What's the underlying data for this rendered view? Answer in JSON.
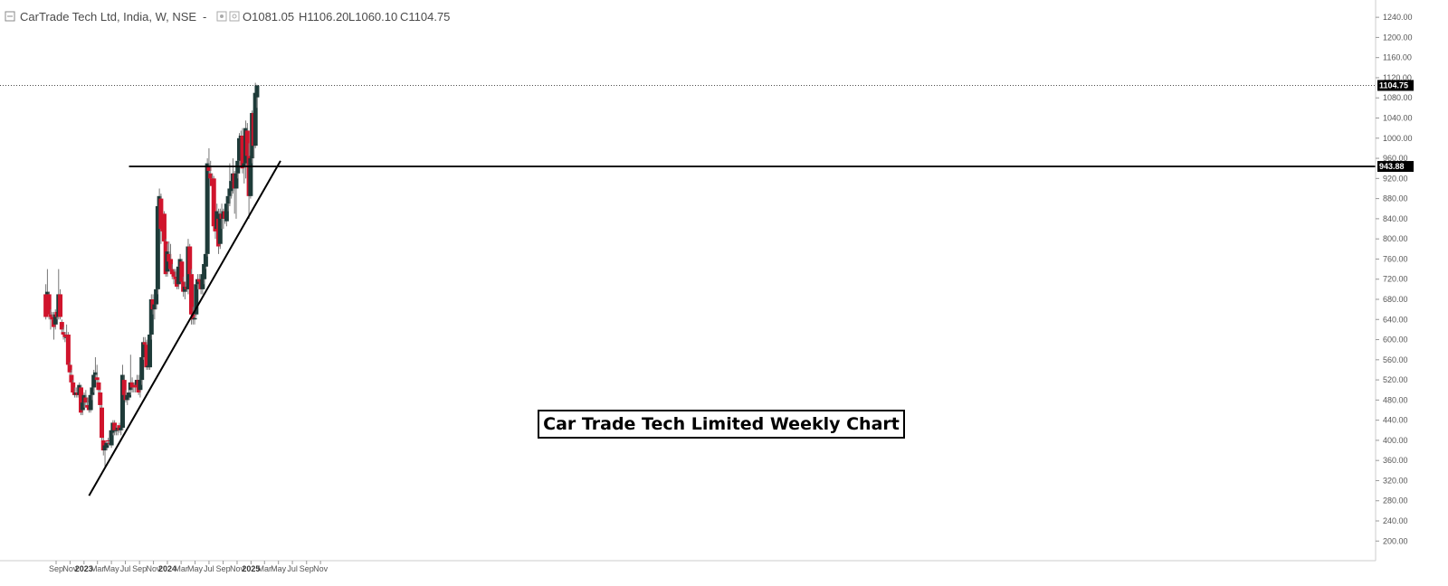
{
  "legend": {
    "symbol": "CarTrade Tech Ltd, India, W, NSE",
    "open": "O1081.05",
    "high": "H1106.20",
    "low": "L1060.10",
    "close": "C1104.75"
  },
  "chart_data": {
    "type": "candlestick",
    "title": "Car Trade Tech Limited Weekly Chart",
    "ylim": [
      170,
      1260
    ],
    "y_ticks": [
      200,
      240,
      280,
      320,
      360,
      400,
      440,
      480,
      520,
      560,
      600,
      640,
      680,
      720,
      760,
      800,
      840,
      880,
      920,
      960,
      1000,
      1040,
      1080,
      1120,
      1160,
      1200,
      1240
    ],
    "x_ticks": [
      {
        "label": "Sep",
        "date": "2022-09-01"
      },
      {
        "label": "Nov",
        "date": "2022-11-01"
      },
      {
        "label": "2023",
        "date": "2023-01-01",
        "bold": true
      },
      {
        "label": "Mar",
        "date": "2023-03-01"
      },
      {
        "label": "May",
        "date": "2023-05-01"
      },
      {
        "label": "Jul",
        "date": "2023-07-01"
      },
      {
        "label": "Sep",
        "date": "2023-09-01"
      },
      {
        "label": "Nov",
        "date": "2023-11-01"
      },
      {
        "label": "2024",
        "date": "2024-01-01",
        "bold": true
      },
      {
        "label": "Mar",
        "date": "2024-03-01"
      },
      {
        "label": "May",
        "date": "2024-05-01"
      },
      {
        "label": "Jul",
        "date": "2024-07-01"
      },
      {
        "label": "Sep",
        "date": "2024-09-01"
      },
      {
        "label": "Nov",
        "date": "2024-11-01"
      },
      {
        "label": "2025",
        "date": "2025-01-01",
        "bold": true
      },
      {
        "label": "Mar",
        "date": "2025-03-01"
      },
      {
        "label": "May",
        "date": "2025-05-01"
      },
      {
        "label": "Jul",
        "date": "2025-07-01"
      },
      {
        "label": "Sep",
        "date": "2025-09-01"
      },
      {
        "label": "Nov",
        "date": "2025-11-01"
      }
    ],
    "candles": [
      {
        "date": "2022-07-18",
        "o": 690,
        "h": 710,
        "l": 640,
        "c": 645
      },
      {
        "date": "2022-07-25",
        "o": 690,
        "h": 740,
        "l": 685,
        "c": 695
      },
      {
        "date": "2022-08-01",
        "o": 690,
        "h": 695,
        "l": 640,
        "c": 650
      },
      {
        "date": "2022-08-08",
        "o": 650,
        "h": 660,
        "l": 620,
        "c": 645
      },
      {
        "date": "2022-08-15",
        "o": 645,
        "h": 655,
        "l": 630,
        "c": 640
      },
      {
        "date": "2022-08-22",
        "o": 640,
        "h": 655,
        "l": 600,
        "c": 625
      },
      {
        "date": "2022-08-29",
        "o": 630,
        "h": 660,
        "l": 620,
        "c": 650
      },
      {
        "date": "2022-09-05",
        "o": 655,
        "h": 665,
        "l": 640,
        "c": 645
      },
      {
        "date": "2022-09-12",
        "o": 645,
        "h": 740,
        "l": 640,
        "c": 690
      },
      {
        "date": "2022-09-19",
        "o": 690,
        "h": 700,
        "l": 640,
        "c": 645
      },
      {
        "date": "2022-09-26",
        "o": 635,
        "h": 640,
        "l": 610,
        "c": 620
      },
      {
        "date": "2022-10-03",
        "o": 615,
        "h": 625,
        "l": 600,
        "c": 610
      },
      {
        "date": "2022-10-10",
        "o": 610,
        "h": 615,
        "l": 595,
        "c": 605
      },
      {
        "date": "2022-10-17",
        "o": 605,
        "h": 630,
        "l": 590,
        "c": 605
      },
      {
        "date": "2022-10-24",
        "o": 610,
        "h": 615,
        "l": 545,
        "c": 550
      },
      {
        "date": "2022-10-31",
        "o": 550,
        "h": 555,
        "l": 520,
        "c": 535
      },
      {
        "date": "2022-11-07",
        "o": 530,
        "h": 540,
        "l": 505,
        "c": 515
      },
      {
        "date": "2022-11-14",
        "o": 515,
        "h": 520,
        "l": 490,
        "c": 495
      },
      {
        "date": "2022-11-21",
        "o": 495,
        "h": 505,
        "l": 485,
        "c": 490
      },
      {
        "date": "2022-11-28",
        "o": 490,
        "h": 505,
        "l": 485,
        "c": 495
      },
      {
        "date": "2022-12-05",
        "o": 495,
        "h": 505,
        "l": 485,
        "c": 490
      },
      {
        "date": "2022-12-12",
        "o": 490,
        "h": 515,
        "l": 485,
        "c": 510
      },
      {
        "date": "2022-12-19",
        "o": 505,
        "h": 510,
        "l": 450,
        "c": 455
      },
      {
        "date": "2022-12-26",
        "o": 460,
        "h": 480,
        "l": 450,
        "c": 475
      },
      {
        "date": "2023-01-02",
        "o": 475,
        "h": 495,
        "l": 465,
        "c": 490
      },
      {
        "date": "2023-01-09",
        "o": 485,
        "h": 500,
        "l": 470,
        "c": 475
      },
      {
        "date": "2023-01-16",
        "o": 470,
        "h": 485,
        "l": 460,
        "c": 465
      },
      {
        "date": "2023-01-23",
        "o": 470,
        "h": 480,
        "l": 455,
        "c": 460
      },
      {
        "date": "2023-01-30",
        "o": 460,
        "h": 495,
        "l": 455,
        "c": 490
      },
      {
        "date": "2023-02-06",
        "o": 490,
        "h": 515,
        "l": 480,
        "c": 505
      },
      {
        "date": "2023-02-13",
        "o": 505,
        "h": 540,
        "l": 495,
        "c": 530
      },
      {
        "date": "2023-02-20",
        "o": 530,
        "h": 565,
        "l": 520,
        "c": 535
      },
      {
        "date": "2023-02-27",
        "o": 525,
        "h": 550,
        "l": 510,
        "c": 520
      },
      {
        "date": "2023-03-06",
        "o": 515,
        "h": 520,
        "l": 490,
        "c": 500
      },
      {
        "date": "2023-03-13",
        "o": 495,
        "h": 500,
        "l": 460,
        "c": 470
      },
      {
        "date": "2023-03-20",
        "o": 465,
        "h": 470,
        "l": 400,
        "c": 405
      },
      {
        "date": "2023-03-27",
        "o": 400,
        "h": 405,
        "l": 370,
        "c": 380
      },
      {
        "date": "2023-04-03",
        "o": 380,
        "h": 395,
        "l": 345,
        "c": 390
      },
      {
        "date": "2023-04-10",
        "o": 385,
        "h": 400,
        "l": 380,
        "c": 395
      },
      {
        "date": "2023-04-17",
        "o": 400,
        "h": 405,
        "l": 390,
        "c": 398
      },
      {
        "date": "2023-04-24",
        "o": 395,
        "h": 400,
        "l": 390,
        "c": 393
      },
      {
        "date": "2023-05-01",
        "o": 390,
        "h": 425,
        "l": 385,
        "c": 420
      },
      {
        "date": "2023-05-08",
        "o": 415,
        "h": 440,
        "l": 410,
        "c": 435
      },
      {
        "date": "2023-05-15",
        "o": 435,
        "h": 440,
        "l": 410,
        "c": 420
      },
      {
        "date": "2023-05-22",
        "o": 420,
        "h": 430,
        "l": 410,
        "c": 420
      },
      {
        "date": "2023-05-29",
        "o": 420,
        "h": 430,
        "l": 410,
        "c": 425
      },
      {
        "date": "2023-06-05",
        "o": 430,
        "h": 435,
        "l": 415,
        "c": 420
      },
      {
        "date": "2023-06-12",
        "o": 420,
        "h": 430,
        "l": 410,
        "c": 425
      },
      {
        "date": "2023-06-19",
        "o": 425,
        "h": 550,
        "l": 420,
        "c": 530
      },
      {
        "date": "2023-06-26",
        "o": 520,
        "h": 530,
        "l": 480,
        "c": 490
      },
      {
        "date": "2023-07-03",
        "o": 490,
        "h": 500,
        "l": 475,
        "c": 480
      },
      {
        "date": "2023-07-10",
        "o": 480,
        "h": 495,
        "l": 470,
        "c": 490
      },
      {
        "date": "2023-07-17",
        "o": 485,
        "h": 505,
        "l": 480,
        "c": 495
      },
      {
        "date": "2023-07-24",
        "o": 500,
        "h": 570,
        "l": 490,
        "c": 515
      },
      {
        "date": "2023-07-31",
        "o": 515,
        "h": 525,
        "l": 495,
        "c": 505
      },
      {
        "date": "2023-08-07",
        "o": 510,
        "h": 515,
        "l": 495,
        "c": 508
      },
      {
        "date": "2023-08-14",
        "o": 510,
        "h": 520,
        "l": 495,
        "c": 505
      },
      {
        "date": "2023-08-21",
        "o": 510,
        "h": 530,
        "l": 500,
        "c": 520
      },
      {
        "date": "2023-08-28",
        "o": 520,
        "h": 530,
        "l": 490,
        "c": 495
      },
      {
        "date": "2023-09-04",
        "o": 500,
        "h": 525,
        "l": 485,
        "c": 520
      },
      {
        "date": "2023-09-11",
        "o": 520,
        "h": 570,
        "l": 510,
        "c": 565
      },
      {
        "date": "2023-09-18",
        "o": 565,
        "h": 605,
        "l": 560,
        "c": 595
      },
      {
        "date": "2023-09-25",
        "o": 595,
        "h": 605,
        "l": 580,
        "c": 590
      },
      {
        "date": "2023-10-02",
        "o": 590,
        "h": 600,
        "l": 540,
        "c": 545
      },
      {
        "date": "2023-10-09",
        "o": 545,
        "h": 560,
        "l": 540,
        "c": 548
      },
      {
        "date": "2023-10-16",
        "o": 545,
        "h": 620,
        "l": 540,
        "c": 610
      },
      {
        "date": "2023-10-23",
        "o": 610,
        "h": 690,
        "l": 600,
        "c": 680
      },
      {
        "date": "2023-10-30",
        "o": 680,
        "h": 690,
        "l": 650,
        "c": 660
      },
      {
        "date": "2023-11-06",
        "o": 660,
        "h": 685,
        "l": 640,
        "c": 670
      },
      {
        "date": "2023-11-13",
        "o": 670,
        "h": 710,
        "l": 660,
        "c": 700
      },
      {
        "date": "2023-11-20",
        "o": 700,
        "h": 880,
        "l": 690,
        "c": 865
      },
      {
        "date": "2023-11-27",
        "o": 865,
        "h": 900,
        "l": 850,
        "c": 885
      },
      {
        "date": "2023-12-04",
        "o": 880,
        "h": 890,
        "l": 790,
        "c": 820
      },
      {
        "date": "2023-12-11",
        "o": 820,
        "h": 830,
        "l": 810,
        "c": 815
      },
      {
        "date": "2023-12-18",
        "o": 850,
        "h": 855,
        "l": 790,
        "c": 795
      },
      {
        "date": "2023-12-25",
        "o": 795,
        "h": 800,
        "l": 725,
        "c": 730
      },
      {
        "date": "2024-01-01",
        "o": 735,
        "h": 790,
        "l": 725,
        "c": 775
      },
      {
        "date": "2024-01-08",
        "o": 770,
        "h": 795,
        "l": 750,
        "c": 755
      },
      {
        "date": "2024-01-15",
        "o": 760,
        "h": 790,
        "l": 730,
        "c": 740
      },
      {
        "date": "2024-01-22",
        "o": 740,
        "h": 750,
        "l": 720,
        "c": 730
      },
      {
        "date": "2024-01-29",
        "o": 735,
        "h": 740,
        "l": 710,
        "c": 725
      },
      {
        "date": "2024-02-05",
        "o": 725,
        "h": 740,
        "l": 705,
        "c": 720
      },
      {
        "date": "2024-02-12",
        "o": 720,
        "h": 740,
        "l": 700,
        "c": 705
      },
      {
        "date": "2024-02-19",
        "o": 710,
        "h": 760,
        "l": 700,
        "c": 745
      },
      {
        "date": "2024-02-26",
        "o": 745,
        "h": 770,
        "l": 735,
        "c": 760
      },
      {
        "date": "2024-03-04",
        "o": 755,
        "h": 760,
        "l": 710,
        "c": 715
      },
      {
        "date": "2024-03-11",
        "o": 715,
        "h": 725,
        "l": 685,
        "c": 695
      },
      {
        "date": "2024-03-18",
        "o": 695,
        "h": 715,
        "l": 680,
        "c": 705
      },
      {
        "date": "2024-03-25",
        "o": 705,
        "h": 720,
        "l": 695,
        "c": 700
      },
      {
        "date": "2024-04-01",
        "o": 700,
        "h": 800,
        "l": 690,
        "c": 785
      },
      {
        "date": "2024-04-08",
        "o": 785,
        "h": 790,
        "l": 720,
        "c": 730
      },
      {
        "date": "2024-04-15",
        "o": 730,
        "h": 740,
        "l": 630,
        "c": 650
      },
      {
        "date": "2024-04-22",
        "o": 650,
        "h": 665,
        "l": 630,
        "c": 640
      },
      {
        "date": "2024-04-29",
        "o": 640,
        "h": 648,
        "l": 630,
        "c": 643
      },
      {
        "date": "2024-05-06",
        "o": 650,
        "h": 720,
        "l": 645,
        "c": 710
      },
      {
        "date": "2024-05-13",
        "o": 710,
        "h": 730,
        "l": 700,
        "c": 720
      },
      {
        "date": "2024-05-20",
        "o": 720,
        "h": 730,
        "l": 705,
        "c": 715
      },
      {
        "date": "2024-05-27",
        "o": 715,
        "h": 720,
        "l": 690,
        "c": 700
      },
      {
        "date": "2024-06-03",
        "o": 700,
        "h": 745,
        "l": 690,
        "c": 730
      },
      {
        "date": "2024-06-10",
        "o": 720,
        "h": 760,
        "l": 710,
        "c": 750
      },
      {
        "date": "2024-06-17",
        "o": 745,
        "h": 780,
        "l": 740,
        "c": 770
      },
      {
        "date": "2024-06-24",
        "o": 770,
        "h": 960,
        "l": 765,
        "c": 950
      },
      {
        "date": "2024-07-01",
        "o": 945,
        "h": 980,
        "l": 925,
        "c": 935
      },
      {
        "date": "2024-07-08",
        "o": 930,
        "h": 955,
        "l": 910,
        "c": 920
      },
      {
        "date": "2024-07-15",
        "o": 920,
        "h": 930,
        "l": 890,
        "c": 905
      },
      {
        "date": "2024-07-22",
        "o": 920,
        "h": 925,
        "l": 815,
        "c": 825
      },
      {
        "date": "2024-07-29",
        "o": 825,
        "h": 835,
        "l": 800,
        "c": 815
      },
      {
        "date": "2024-08-05",
        "o": 820,
        "h": 870,
        "l": 795,
        "c": 855
      },
      {
        "date": "2024-08-12",
        "o": 840,
        "h": 860,
        "l": 770,
        "c": 785
      },
      {
        "date": "2024-08-19",
        "o": 790,
        "h": 860,
        "l": 780,
        "c": 850
      },
      {
        "date": "2024-08-26",
        "o": 850,
        "h": 870,
        "l": 820,
        "c": 840
      },
      {
        "date": "2024-09-02",
        "o": 840,
        "h": 860,
        "l": 820,
        "c": 855
      },
      {
        "date": "2024-09-09",
        "o": 855,
        "h": 865,
        "l": 830,
        "c": 840
      },
      {
        "date": "2024-09-16",
        "o": 835,
        "h": 880,
        "l": 825,
        "c": 870
      },
      {
        "date": "2024-09-23",
        "o": 870,
        "h": 900,
        "l": 855,
        "c": 885
      },
      {
        "date": "2024-09-30",
        "o": 885,
        "h": 950,
        "l": 865,
        "c": 900
      },
      {
        "date": "2024-10-07",
        "o": 895,
        "h": 925,
        "l": 880,
        "c": 915
      },
      {
        "date": "2024-10-14",
        "o": 915,
        "h": 960,
        "l": 890,
        "c": 930
      },
      {
        "date": "2024-10-21",
        "o": 930,
        "h": 935,
        "l": 850,
        "c": 900
      },
      {
        "date": "2024-10-28",
        "o": 900,
        "h": 950,
        "l": 840,
        "c": 930
      },
      {
        "date": "2024-11-04",
        "o": 930,
        "h": 965,
        "l": 920,
        "c": 955
      },
      {
        "date": "2024-11-11",
        "o": 955,
        "h": 1010,
        "l": 945,
        "c": 1000
      },
      {
        "date": "2024-11-18",
        "o": 1000,
        "h": 1015,
        "l": 950,
        "c": 1005
      },
      {
        "date": "2024-11-25",
        "o": 1005,
        "h": 1020,
        "l": 930,
        "c": 940
      },
      {
        "date": "2024-12-02",
        "o": 945,
        "h": 960,
        "l": 910,
        "c": 950
      },
      {
        "date": "2024-12-09",
        "o": 950,
        "h": 1035,
        "l": 920,
        "c": 1020
      },
      {
        "date": "2024-12-16",
        "o": 1015,
        "h": 1030,
        "l": 955,
        "c": 965
      },
      {
        "date": "2024-12-23",
        "o": 965,
        "h": 990,
        "l": 840,
        "c": 885
      },
      {
        "date": "2024-12-30",
        "o": 885,
        "h": 975,
        "l": 880,
        "c": 960
      },
      {
        "date": "2025-01-06",
        "o": 960,
        "h": 1055,
        "l": 950,
        "c": 1050
      },
      {
        "date": "2025-01-13",
        "o": 1050,
        "h": 1060,
        "l": 960,
        "c": 985
      },
      {
        "date": "2025-01-20",
        "o": 985,
        "h": 1110,
        "l": 980,
        "c": 1090
      },
      {
        "date": "2025-01-27",
        "o": 1081.05,
        "h": 1106.2,
        "l": 1060.1,
        "c": 1104.75
      }
    ],
    "hline": {
      "value": 943.88,
      "label": "943.88",
      "start_date": "2023-07-17"
    },
    "trendline": {
      "start": {
        "date": "2023-01-23",
        "price": 290
      },
      "end": {
        "date": "2025-05-10",
        "price": 955
      }
    },
    "last_price": {
      "value": 1104.75,
      "label": "1104.75"
    },
    "colors": {
      "up": "#1e3b39",
      "down": "#d0142c",
      "wick": "#777777",
      "line": "#000000",
      "axis_border": "#cccccc",
      "tag_bg": "#000000"
    }
  }
}
